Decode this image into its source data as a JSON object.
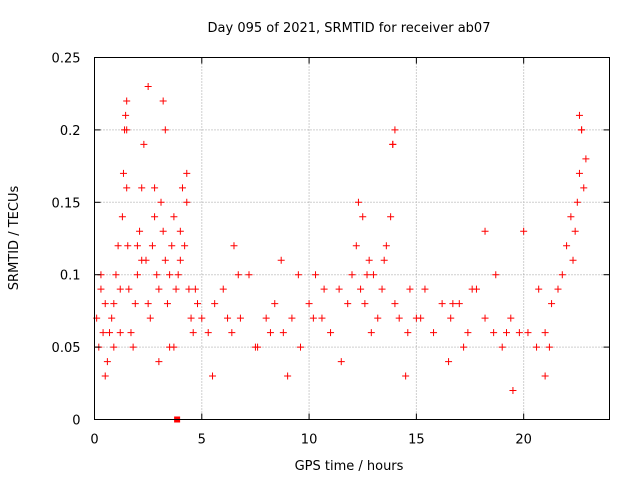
{
  "chart_data": {
    "type": "scatter",
    "title": "Day 095 of 2021, SRMTID for receiver ab07",
    "xlabel": "GPS time / hours",
    "ylabel": "SRMTID / TECUs",
    "xlim": [
      0,
      24
    ],
    "ylim": [
      0,
      0.25
    ],
    "xticks": [
      0,
      5,
      10,
      15,
      20
    ],
    "xtick_labels": [
      "0",
      "5",
      "10",
      "15",
      "20"
    ],
    "yticks": [
      0,
      0.05,
      0.1,
      0.15,
      0.2,
      0.25
    ],
    "ytick_labels": [
      "0",
      "0.05",
      "0.1",
      "0.15",
      "0.2",
      "0.25"
    ],
    "grid": true,
    "marker": "+",
    "color": "#ff0000",
    "special_marks": [
      {
        "x": 3.85,
        "y": 0.0,
        "marker": "square"
      }
    ],
    "series": [
      {
        "name": "SRMTID",
        "x": [
          0.1,
          0.2,
          0.3,
          0.4,
          0.5,
          0.6,
          0.7,
          0.8,
          0.9,
          1.0,
          1.1,
          1.2,
          1.3,
          1.35,
          1.4,
          1.45,
          1.5,
          1.55,
          1.6,
          1.7,
          1.8,
          1.9,
          2.0,
          2.1,
          2.2,
          2.3,
          2.4,
          2.5,
          2.6,
          2.7,
          2.8,
          2.9,
          3.0,
          3.1,
          3.2,
          3.3,
          3.4,
          3.5,
          3.6,
          3.7,
          3.8,
          3.9,
          4.0,
          4.1,
          4.2,
          4.3,
          4.4,
          4.5,
          4.6,
          4.8,
          5.0,
          5.3,
          5.6,
          6.0,
          6.4,
          6.8,
          7.2,
          7.6,
          8.0,
          8.4,
          8.8,
          9.2,
          9.6,
          10.0,
          10.3,
          10.6,
          11.0,
          11.4,
          11.8,
          12.0,
          12.2,
          12.4,
          12.6,
          12.8,
          13.0,
          13.2,
          13.4,
          13.6,
          13.8,
          13.9,
          14.0,
          14.2,
          14.6,
          15.0,
          15.4,
          15.8,
          16.2,
          16.6,
          17.0,
          17.4,
          17.8,
          18.2,
          18.6,
          19.0,
          19.4,
          19.8,
          20.2,
          20.6,
          21.0,
          21.3,
          21.6,
          21.8,
          22.0,
          22.2,
          22.4,
          22.5,
          22.6,
          22.7,
          22.8,
          1.5,
          1.5,
          2.5,
          3.2,
          3.3,
          4.3,
          13.9,
          14.0,
          22.6,
          22.7,
          2.8,
          12.3,
          12.5,
          18.2,
          0.5,
          3.0,
          5.5,
          9.0,
          14.5,
          19.5,
          3.5,
          7.5,
          11.5,
          16.5,
          21.0,
          0.9,
          2.2,
          4.7,
          6.7,
          8.7,
          10.7,
          12.7,
          14.7,
          16.7,
          18.7,
          20.7,
          22.3,
          1.2,
          3.7,
          6.2,
          8.2,
          10.2,
          12.9,
          15.2,
          17.2,
          19.2,
          21.2,
          22.9,
          0.3,
          2.0,
          4.0,
          6.5,
          9.5,
          13.5,
          17.6,
          20.0
        ],
        "y": [
          0.07,
          0.05,
          0.09,
          0.06,
          0.08,
          0.04,
          0.06,
          0.07,
          0.05,
          0.1,
          0.12,
          0.09,
          0.14,
          0.17,
          0.2,
          0.21,
          0.16,
          0.12,
          0.09,
          0.06,
          0.05,
          0.08,
          0.1,
          0.13,
          0.16,
          0.19,
          0.11,
          0.08,
          0.07,
          0.12,
          0.14,
          0.1,
          0.09,
          0.15,
          0.13,
          0.11,
          0.08,
          0.1,
          0.12,
          0.14,
          0.09,
          0.1,
          0.13,
          0.16,
          0.12,
          0.15,
          0.09,
          0.07,
          0.06,
          0.08,
          0.07,
          0.06,
          0.08,
          0.09,
          0.06,
          0.07,
          0.1,
          0.05,
          0.07,
          0.08,
          0.06,
          0.07,
          0.05,
          0.08,
          0.1,
          0.07,
          0.06,
          0.09,
          0.08,
          0.1,
          0.12,
          0.09,
          0.08,
          0.11,
          0.1,
          0.07,
          0.09,
          0.12,
          0.14,
          0.19,
          0.08,
          0.07,
          0.06,
          0.07,
          0.09,
          0.06,
          0.08,
          0.07,
          0.08,
          0.06,
          0.09,
          0.07,
          0.06,
          0.05,
          0.07,
          0.06,
          0.06,
          0.05,
          0.06,
          0.08,
          0.09,
          0.1,
          0.12,
          0.14,
          0.13,
          0.15,
          0.17,
          0.2,
          0.16,
          0.22,
          0.2,
          0.23,
          0.22,
          0.2,
          0.17,
          0.19,
          0.2,
          0.21,
          0.2,
          0.16,
          0.15,
          0.14,
          0.13,
          0.03,
          0.04,
          0.03,
          0.03,
          0.03,
          0.02,
          0.05,
          0.05,
          0.04,
          0.04,
          0.03,
          0.08,
          0.11,
          0.09,
          0.1,
          0.11,
          0.09,
          0.1,
          0.09,
          0.08,
          0.1,
          0.09,
          0.11,
          0.06,
          0.05,
          0.07,
          0.06,
          0.07,
          0.06,
          0.07,
          0.05,
          0.06,
          0.05,
          0.18,
          0.1,
          0.12,
          0.11,
          0.12,
          0.1,
          0.11,
          0.09,
          0.13
        ]
      }
    ]
  }
}
